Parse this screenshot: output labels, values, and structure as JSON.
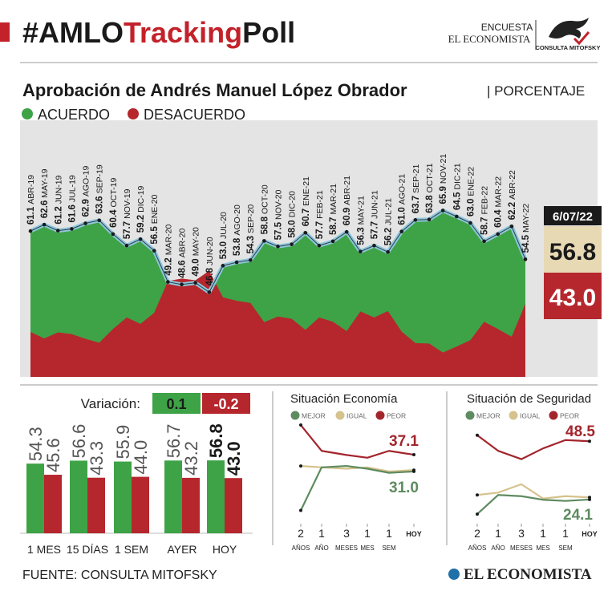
{
  "header": {
    "title_parts": [
      "#AMLO",
      "Tracking",
      "Poll"
    ],
    "survey": "ENCUESTA",
    "paper": "EL ECONOMISTA",
    "pollster": "CONSULTA MITOFSKY"
  },
  "footer": {
    "source": "FUENTE: CONSULTA MITOFSKY",
    "logo": "EL ECONOMISTA"
  },
  "chart_data": [
    {
      "type": "area",
      "title": "Aprobación de Andrés Manuel López Obrador",
      "subtitle": "| PORCENTAJE",
      "categories": [
        "ABR-19",
        "MAY-19",
        "JUN-19",
        "JUL-19",
        "AGO-19",
        "SEP-19",
        "OCT-19",
        "NOV-19",
        "DIC-19",
        "ENE-20",
        "MAR-20",
        "ABR-20",
        "MAY-20",
        "JUN-20",
        "JUL-20",
        "AGO-20",
        "SEP-20",
        "OCT-20",
        "NOV-20",
        "DIC-20",
        "ENE-21",
        "FEB-21",
        "MAR-21",
        "ABR-21",
        "MAY-21",
        "JUN-21",
        "JUL-21",
        "AGO-21",
        "SEP-21",
        "OCT-21",
        "NOV-21",
        "DIC-21",
        "ENE-22",
        "FEB-22",
        "MAR-22",
        "ABR-22",
        "MAY-22"
      ],
      "series": [
        {
          "name": "ACUERDO",
          "color": "#3ea346",
          "values": [
            61.1,
            62.6,
            61.2,
            61.6,
            62.9,
            63.6,
            60.4,
            57.7,
            59.2,
            56.5,
            49.2,
            48.6,
            49.0,
            46.8,
            53.0,
            53.8,
            54.3,
            58.8,
            57.5,
            58.0,
            60.7,
            57.7,
            58.7,
            60.9,
            56.3,
            57.7,
            56.2,
            61.0,
            63.7,
            63.8,
            65.9,
            64.5,
            63.0,
            58.7,
            60.4,
            62.2,
            54.5
          ],
          "value_labels": [
            "61.1",
            "62.6",
            "61.2",
            "61.6",
            "62.9",
            "63.6",
            "60.4",
            "57.7",
            "59.2",
            "56.5",
            "49.2",
            "48.6",
            "49.0",
            "46.8",
            "53.0",
            "53.8",
            "54.3",
            "58.8",
            "57.5",
            "58.0",
            "60.7",
            "57.7",
            "58.7",
            "60.9",
            "56.3",
            "57.7",
            "56.2",
            "61.0",
            "63.7",
            "63.8",
            "65.9",
            "64.5",
            "63.0",
            "58.7",
            "60.4",
            "62.2",
            "54.5"
          ]
        },
        {
          "name": "DESACUERDO",
          "color": "#b5272d",
          "values": [
            37.5,
            36.0,
            37.4,
            37.0,
            35.9,
            35.0,
            38.2,
            40.9,
            39.4,
            42.0,
            49.4,
            50.0,
            49.6,
            51.8,
            45.6,
            44.8,
            44.3,
            39.8,
            41.1,
            40.6,
            38.0,
            40.9,
            39.9,
            37.7,
            42.3,
            40.9,
            42.4,
            37.6,
            34.9,
            34.8,
            32.7,
            34.1,
            35.6,
            39.9,
            38.2,
            36.4,
            44.1
          ]
        }
      ],
      "ylim": [
        27,
        87
      ],
      "current": {
        "date": "6/07/22",
        "values": [
          56.8,
          43.0
        ],
        "value_labels": [
          "56.8",
          "43.0"
        ]
      }
    },
    {
      "type": "bar",
      "title": "Variación:",
      "variation": [
        0.1,
        -0.2
      ],
      "categories": [
        "1 MES",
        "15 DÍAS",
        "1 SEM",
        "AYER",
        "HOY"
      ],
      "series": [
        {
          "name": "ACUERDO",
          "color": "#3ea346",
          "values": [
            54.3,
            56.6,
            55.9,
            56.7,
            56.8
          ]
        },
        {
          "name": "DESACUERDO",
          "color": "#b5272d",
          "values": [
            45.6,
            43.3,
            44.0,
            43.2,
            43.0
          ],
          "value_labels": [
            "45.6",
            "43.3",
            "44.0",
            "43.2",
            "43.0"
          ]
        }
      ],
      "ylim": [
        0,
        60
      ]
    },
    {
      "type": "line",
      "title": "Situación Economía",
      "categories": [
        [
          "2",
          "AÑOS"
        ],
        [
          "1",
          "AÑO"
        ],
        [
          "3",
          "MESES"
        ],
        [
          "1",
          "MES"
        ],
        [
          "1",
          "SEM"
        ],
        [
          "HOY"
        ]
      ],
      "series": [
        {
          "name": "MEJOR",
          "color": "#5e8b5f",
          "values": [
            16.8,
            32.5,
            33.0,
            32.0,
            30.5,
            31.0
          ],
          "value_labels": [
            null,
            null,
            null,
            null,
            null,
            "31.0"
          ]
        },
        {
          "name": "IGUAL",
          "color": "#d6c28c",
          "values": [
            33.0,
            32.5,
            32.0,
            32.5,
            31.0,
            31.5
          ]
        },
        {
          "name": "PEOR",
          "color": "#a3252c",
          "values": [
            47.9,
            38.5,
            37.0,
            36.0,
            38.5,
            37.1
          ],
          "value_labels": [
            null,
            null,
            null,
            null,
            null,
            "37.1"
          ]
        }
      ],
      "ylim": [
        12,
        52
      ]
    },
    {
      "type": "line",
      "title": "Situación de Seguridad",
      "categories": [
        [
          "2",
          "AÑOS"
        ],
        [
          "1",
          "AÑO"
        ],
        [
          "3",
          "MESES"
        ],
        [
          "1",
          "MES"
        ],
        [
          "1",
          "SEM"
        ],
        [
          "HOY"
        ]
      ],
      "series": [
        {
          "name": "MEJOR",
          "color": "#5e8b5f",
          "values": [
            18.0,
            26.0,
            25.5,
            24.0,
            23.5,
            24.1
          ],
          "value_labels": [
            null,
            null,
            null,
            null,
            null,
            "24.1"
          ]
        },
        {
          "name": "IGUAL",
          "color": "#d6c28c",
          "values": [
            26.0,
            27.0,
            30.5,
            24.5,
            25.5,
            25.0
          ]
        },
        {
          "name": "PEOR",
          "color": "#a3252c",
          "values": [
            51.0,
            44.5,
            41.0,
            45.5,
            49.0,
            48.5
          ],
          "value_labels": [
            null,
            null,
            null,
            null,
            null,
            "48.5"
          ]
        }
      ],
      "ylim": [
        14,
        60
      ]
    }
  ]
}
